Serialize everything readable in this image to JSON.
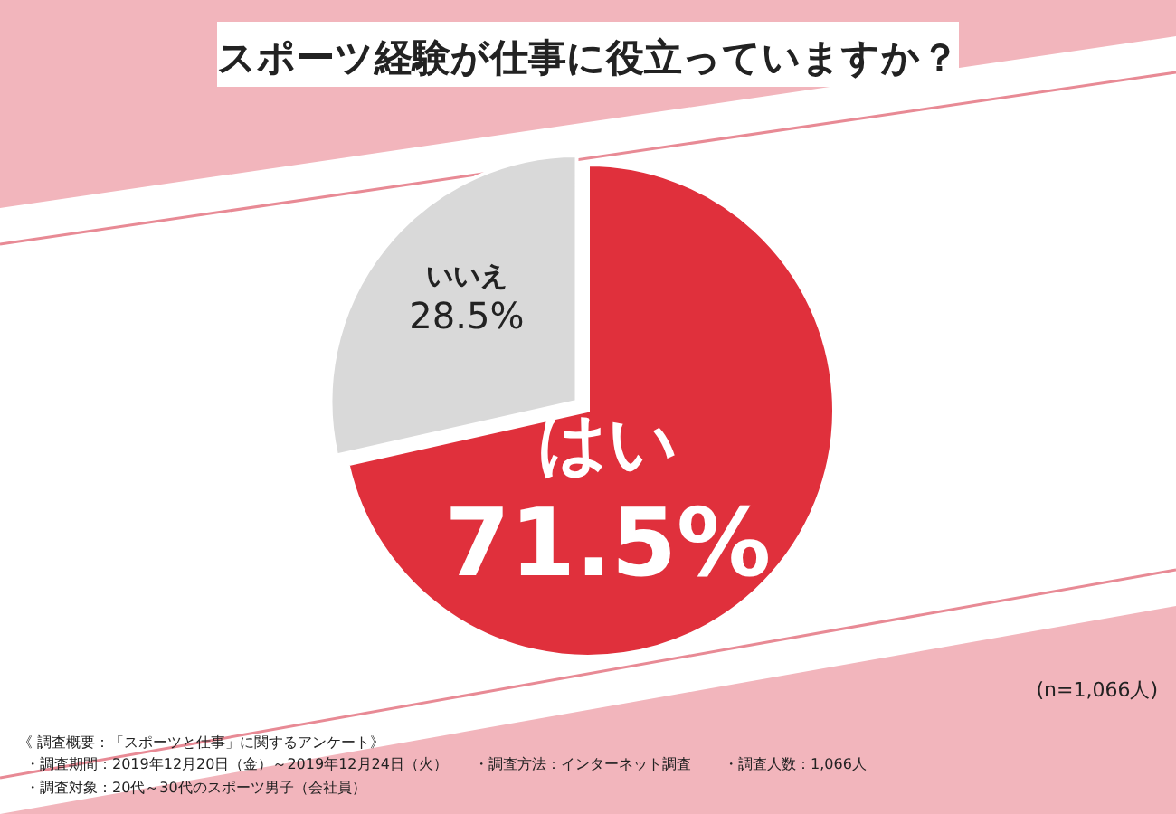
{
  "chart_data": {
    "type": "pie",
    "title": "スポーツ経験が仕事に役立っていますか？",
    "categories": [
      "はい",
      "いいえ"
    ],
    "values": [
      71.5,
      28.5
    ],
    "colors": [
      "#e0303c",
      "#d9d9d9"
    ],
    "value_labels": [
      "71.5%",
      "28.5%"
    ],
    "annotations": [
      "(n=1,066人)",
      "《 調査概要：「スポーツと仕事」に関するアンケート》",
      "・調査期間：2019年12月20日（金）～2019年12月24日（火）",
      "・調査対象：20代～30代のスポーツ男子（会社員）",
      "・調査方法：インターネット調査",
      "・調査人数：1,066人"
    ]
  }
}
